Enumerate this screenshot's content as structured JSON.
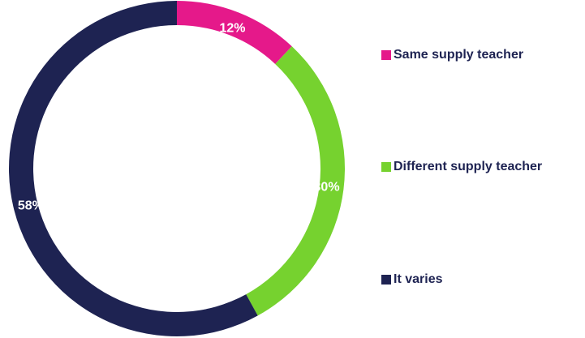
{
  "chart_data": {
    "type": "donut",
    "categories": [
      "Same supply teacher",
      "Different supply teacher",
      "It varies"
    ],
    "values": [
      12,
      30,
      58
    ],
    "value_labels": [
      "12%",
      "30%",
      "58%"
    ],
    "colors": [
      "#e5198a",
      "#76d22f",
      "#1e2352"
    ],
    "legend": "right"
  }
}
